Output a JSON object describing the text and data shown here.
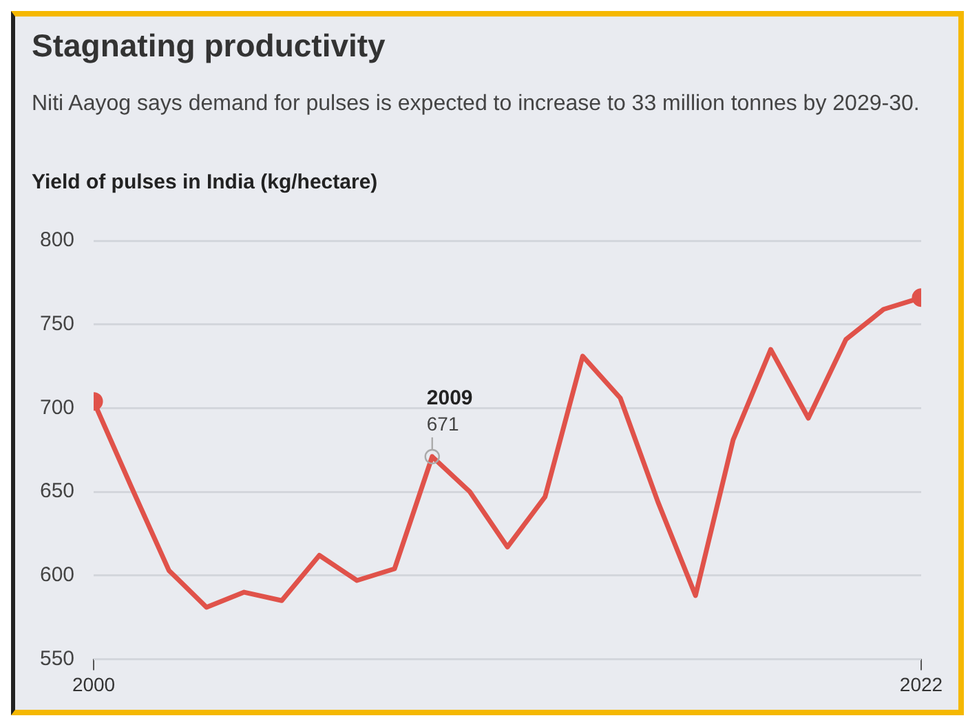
{
  "chart_data": {
    "type": "line",
    "title": "Stagnating productivity",
    "subtitle": "Niti Aayog says demand for pulses is expected to increase to 33 million tonnes by 2029-30.",
    "ylabel": "Yield of pulses in India (kg/hectare)",
    "x": [
      2000,
      2001,
      2002,
      2003,
      2004,
      2005,
      2006,
      2007,
      2008,
      2009,
      2010,
      2011,
      2012,
      2013,
      2014,
      2015,
      2016,
      2017,
      2018,
      2019,
      2020,
      2021,
      2022
    ],
    "series": [
      {
        "color": "#e0524a",
        "values": [
          704,
          653,
          603,
          581,
          590,
          585,
          612,
          597,
          604,
          671,
          650,
          617,
          647,
          731,
          706,
          644,
          588,
          681,
          735,
          694,
          741,
          759,
          766
        ],
        "value_labels": [
          null,
          null,
          null,
          null,
          null,
          null,
          null,
          null,
          null,
          "671",
          null,
          null,
          null,
          null,
          null,
          null,
          null,
          null,
          null,
          null,
          null,
          null,
          null
        ]
      }
    ],
    "annotations": [
      {
        "text": "2009",
        "x": 2009,
        "y": 671
      }
    ],
    "xlim": [
      2000,
      2022
    ],
    "xticks": [
      2000,
      2022
    ],
    "ylim": [
      550,
      800
    ],
    "yticks": [
      550,
      600,
      650,
      700,
      750,
      800
    ],
    "grid": "y",
    "legend": false,
    "line_style": "solid"
  }
}
